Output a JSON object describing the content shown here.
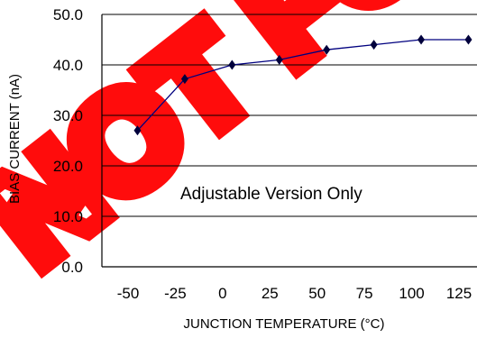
{
  "chart_data": {
    "type": "line",
    "title": "",
    "xlabel": "JUNCTION TEMPERATURE (°C)",
    "ylabel": "BIAS CURRENT (nA)",
    "annotation": "Adjustable Version Only",
    "xlim": [
      -50,
      125
    ],
    "ylim": [
      0,
      50
    ],
    "x_ticks": [
      -50,
      -25,
      0,
      25,
      50,
      75,
      100,
      125
    ],
    "x_tick_labels": [
      "-50",
      "-25",
      "0",
      "25",
      "50",
      "75",
      "100",
      "125"
    ],
    "y_ticks": [
      0,
      10,
      20,
      30,
      40,
      50
    ],
    "y_tick_labels": [
      "0.0",
      "10.0",
      "20.0",
      "30.0",
      "40.0",
      "50.0"
    ],
    "grid": "horizontal",
    "series": [
      {
        "x": [
          -45,
          -20,
          5,
          30,
          55,
          80,
          105,
          130
        ],
        "y": [
          27,
          37.2,
          40,
          41,
          43,
          44,
          45,
          45
        ]
      }
    ],
    "line_color": "#00007f",
    "marker_color": "#00003c",
    "watermark_color": "#ff0000",
    "watermark_text": "NOT FOR"
  }
}
